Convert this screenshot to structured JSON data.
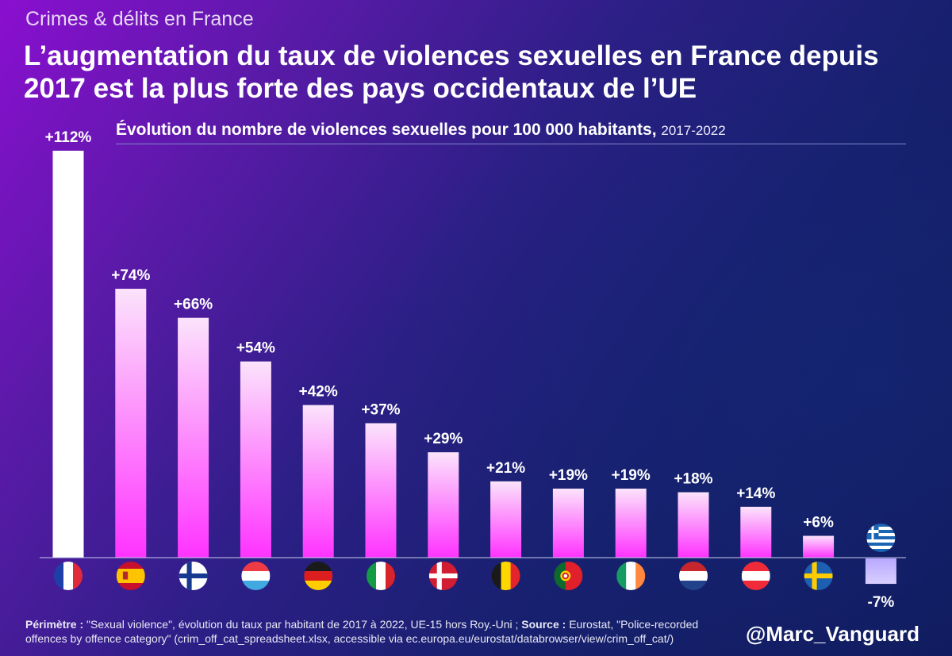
{
  "header": {
    "kicker": "Crimes & délits en France",
    "title": "L’augmentation du taux de violences sexuelles en France depuis 2017 est la plus forte des pays occidentaux de l’UE",
    "subtitle_bold": "Évolution du nombre de violences sexuelles pour 100 000 habitants,",
    "subtitle_years": "2017-2022"
  },
  "chart_data": {
    "type": "bar",
    "title": "Évolution du nombre de violences sexuelles pour 100 000 habitants, 2017-2022",
    "xlabel": "",
    "ylabel": "",
    "unit": "%",
    "ylim": [
      -7,
      112
    ],
    "categories": [
      "France",
      "Espagne",
      "Finlande",
      "Luxembourg",
      "Allemagne",
      "Italie",
      "Danemark",
      "Belgique",
      "Portugal",
      "Irlande",
      "Pays-Bas",
      "Autriche",
      "Suède",
      "Grèce"
    ],
    "values": [
      112,
      74,
      66,
      54,
      42,
      37,
      29,
      21,
      19,
      19,
      18,
      14,
      6,
      -7
    ],
    "labels": [
      "+112%",
      "+74%",
      "+66%",
      "+54%",
      "+42%",
      "+37%",
      "+29%",
      "+21%",
      "+19%",
      "+19%",
      "+18%",
      "+14%",
      "+6%",
      "-7%"
    ],
    "flag_icons": [
      "flag-france-icon",
      "flag-spain-icon",
      "flag-finland-icon",
      "flag-luxembourg-icon",
      "flag-germany-icon",
      "flag-italy-icon",
      "flag-denmark-icon",
      "flag-belgium-icon",
      "flag-portugal-icon",
      "flag-ireland-icon",
      "flag-netherlands-icon",
      "flag-austria-icon",
      "flag-sweden-icon",
      "flag-greece-icon"
    ],
    "highlight": "France",
    "colors": {
      "highlight": "#ffffff",
      "bar_top": "#fbe3fb",
      "bar_bottom": "#ff33ff",
      "negative": "#b9a8ff"
    }
  },
  "footer": {
    "perimetre_label": "Périmètre :",
    "perimetre_text": "\"Sexual violence\", évolution du taux par habitant de 2017 à 2022, UE-15 hors Roy.-Uni ;",
    "source_label": "Source :",
    "source_text": "Eurostat, \"Police-recorded offences by offence category\" (crim_off_cat_spreadsheet.xlsx, accessible via ec.europa.eu/eurostat/databrowser/view/crim_off_cat/)",
    "handle": "@Marc_Vanguard"
  }
}
